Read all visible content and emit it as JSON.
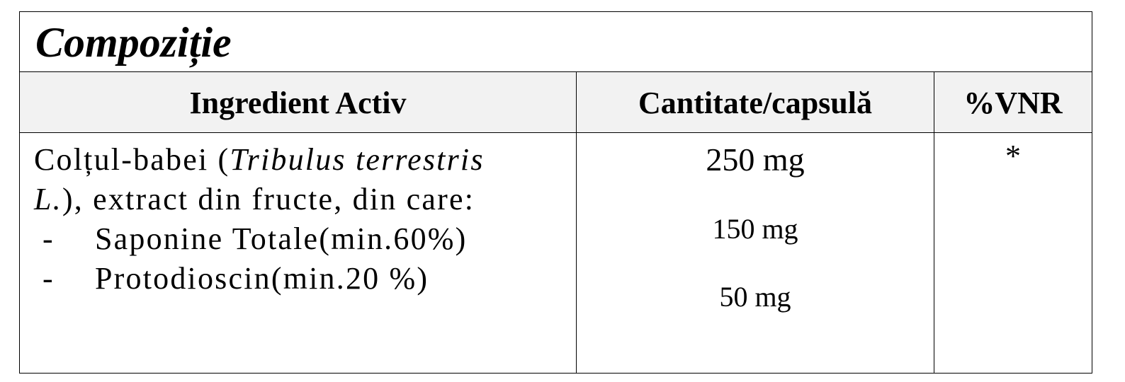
{
  "title": "Compoziție",
  "table": {
    "headers": {
      "ingredient": "Ingredient Activ",
      "quantity": "Cantitate/capsulă",
      "nrv": "%VNR"
    },
    "row": {
      "ingredient_part1": "Colțul-babei (",
      "latin_1": "Tribulus terrestris",
      "latin_2": "L.",
      "ingredient_part2": "), extract din fructe, din care:",
      "sub_items": [
        {
          "bullet": "-",
          "label": "Saponine Totale(min.60%)"
        },
        {
          "bullet": "-",
          "label": "Protodioscin(min.20 %)"
        }
      ],
      "quantity_main": "250 mg",
      "quantity_sub_1": "150 mg",
      "quantity_sub_2": "50 mg",
      "nrv": "*"
    }
  }
}
